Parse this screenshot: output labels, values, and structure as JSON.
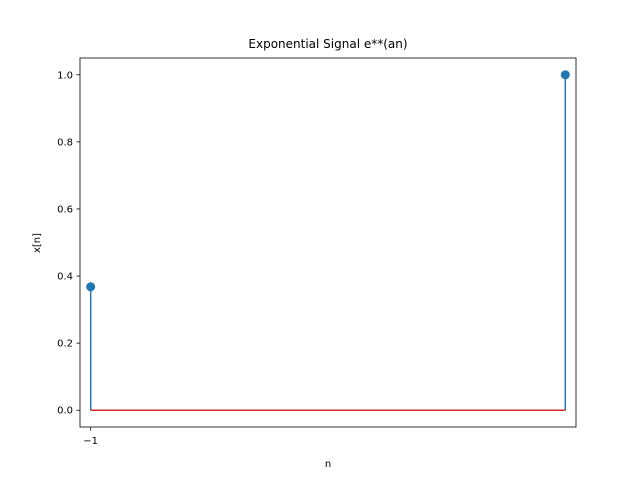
{
  "chart_data": {
    "type": "stem",
    "title": "Exponential Signal e**(an)",
    "xlabel": "n",
    "ylabel": "x[n]",
    "x": [
      -1,
      0
    ],
    "values": [
      0.368,
      1.0
    ],
    "xticks": [
      "−1"
    ],
    "yticks": [
      "0.0",
      "0.2",
      "0.4",
      "0.6",
      "0.8",
      "1.0"
    ],
    "ylim": [
      -0.05,
      1.05
    ],
    "grid": false,
    "colors": {
      "stem": "#1f77b4",
      "baseline": "#d62728"
    }
  }
}
